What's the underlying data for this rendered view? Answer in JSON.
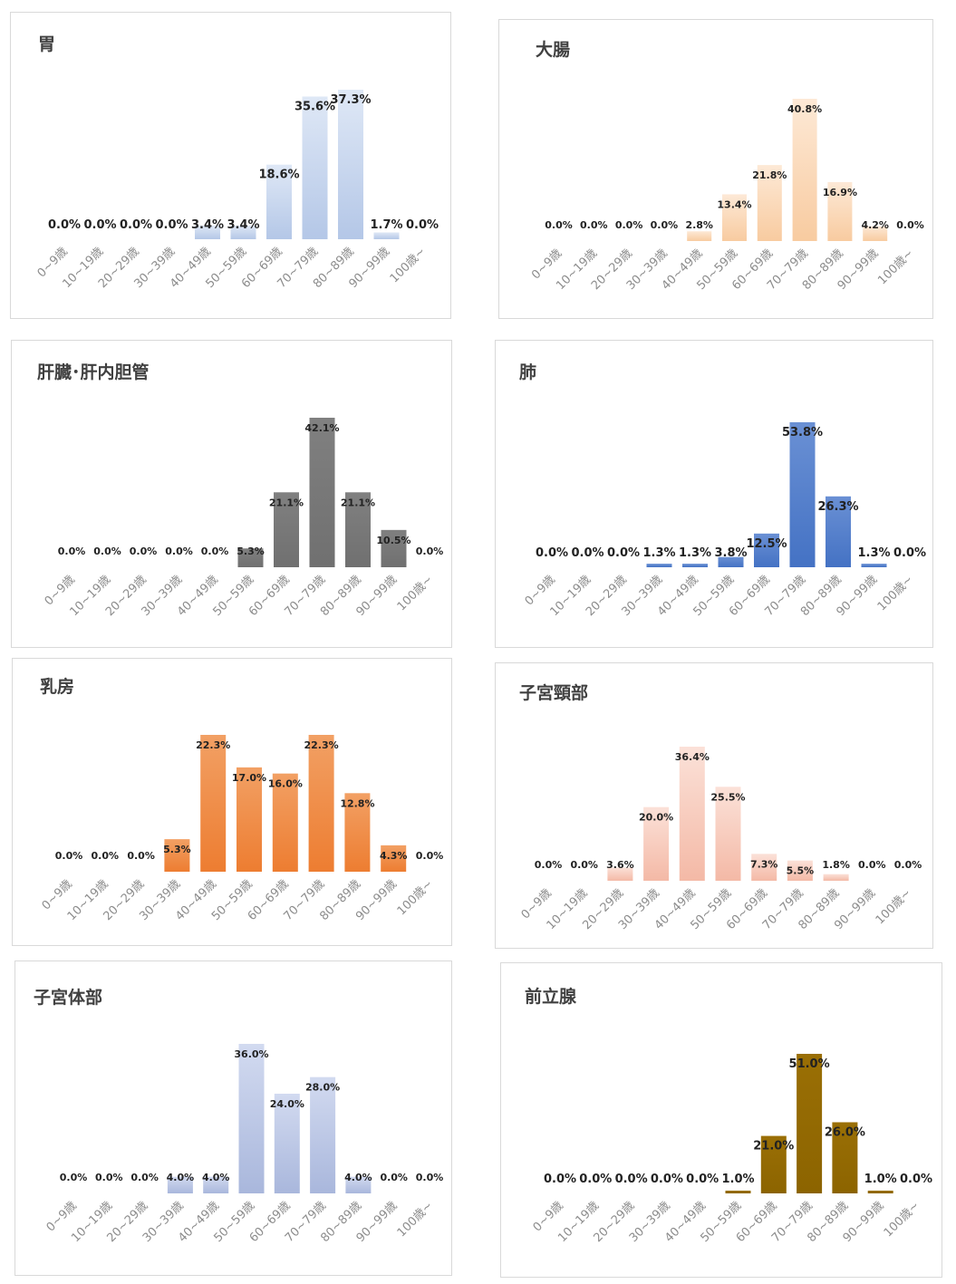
{
  "page": {
    "background": "#ffffff",
    "border_color": "#d9d9d9"
  },
  "categories": [
    "0~9歳",
    "10~19歳",
    "20~29歳",
    "30~39歳",
    "40~49歳",
    "50~59歳",
    "60~69歳",
    "70~79歳",
    "80~89歳",
    "90~99歳",
    "100歳~"
  ],
  "chart_data": [
    {
      "type": "bar",
      "title": "胃",
      "color": "#b4c7e7",
      "gradient_light": "#dfe8f6",
      "categories": [
        "0~9歳",
        "10~19歳",
        "20~29歳",
        "30~39歳",
        "40~49歳",
        "50~59歳",
        "60~69歳",
        "70~79歳",
        "80~89歳",
        "90~99歳",
        "100歳~"
      ],
      "values": [
        0.0,
        0.0,
        0.0,
        0.0,
        3.4,
        3.4,
        18.6,
        35.6,
        37.3,
        1.7,
        0.0
      ],
      "labels": [
        "0.0%",
        "0.0%",
        "0.0%",
        "0.0%",
        "3.4%",
        "3.4%",
        "18.6%",
        "35.6%",
        "37.3%",
        "1.7%",
        "0.0%"
      ],
      "ylim": [
        0,
        37.3
      ]
    },
    {
      "type": "bar",
      "title": "大腸",
      "color": "#f8cba0",
      "gradient_light": "#fde9d6",
      "categories": [
        "0~9歳",
        "10~19歳",
        "20~29歳",
        "30~39歳",
        "40~49歳",
        "50~59歳",
        "60~69歳",
        "70~79歳",
        "80~89歳",
        "90~99歳",
        "100歳~"
      ],
      "values": [
        0.0,
        0.0,
        0.0,
        0.0,
        2.8,
        13.4,
        21.8,
        40.8,
        16.9,
        4.2,
        0.0
      ],
      "labels": [
        "0.0%",
        "0.0%",
        "0.0%",
        "0.0%",
        "2.8%",
        "13.4%",
        "21.8%",
        "40.8%",
        "16.9%",
        "4.2%",
        "0.0%"
      ],
      "ylim": [
        0,
        40.8
      ]
    },
    {
      "type": "bar",
      "title": "肝臓･肝内胆管",
      "color": "#707070",
      "gradient_light": "#808080",
      "categories": [
        "0~9歳",
        "10~19歳",
        "20~29歳",
        "30~39歳",
        "40~49歳",
        "50~59歳",
        "60~69歳",
        "70~79歳",
        "80~89歳",
        "90~99歳",
        "100歳~"
      ],
      "values": [
        0.0,
        0.0,
        0.0,
        0.0,
        0.0,
        5.3,
        21.1,
        42.1,
        21.1,
        10.5,
        0.0
      ],
      "labels": [
        "0.0%",
        "0.0%",
        "0.0%",
        "0.0%",
        "0.0%",
        "5.3%",
        "21.1%",
        "42.1%",
        "21.1%",
        "10.5%",
        "0.0%"
      ],
      "ylim": [
        0,
        42.1
      ]
    },
    {
      "type": "bar",
      "title": "肺",
      "color": "#4472c4",
      "gradient_light": "#6a90d4",
      "categories": [
        "0~9歳",
        "10~19歳",
        "20~29歳",
        "30~39歳",
        "40~49歳",
        "50~59歳",
        "60~69歳",
        "70~79歳",
        "80~89歳",
        "90~99歳",
        "100歳~"
      ],
      "values": [
        0.0,
        0.0,
        0.0,
        1.3,
        1.3,
        3.8,
        12.5,
        53.8,
        26.3,
        1.3,
        0.0
      ],
      "labels": [
        "0.0%",
        "0.0%",
        "0.0%",
        "1.3%",
        "1.3%",
        "3.8%",
        "12.5%",
        "53.8%",
        "26.3%",
        "1.3%",
        "0.0%"
      ],
      "ylim": [
        0,
        53.8
      ]
    },
    {
      "type": "bar",
      "title": "乳房",
      "color": "#ed7d31",
      "gradient_light": "#f2a064",
      "categories": [
        "0~9歳",
        "10~19歳",
        "20~29歳",
        "30~39歳",
        "40~49歳",
        "50~59歳",
        "60~69歳",
        "70~79歳",
        "80~89歳",
        "90~99歳",
        "100歳~"
      ],
      "values": [
        0.0,
        0.0,
        0.0,
        5.3,
        22.3,
        17.0,
        16.0,
        22.3,
        12.8,
        4.3,
        0.0
      ],
      "labels": [
        "0.0%",
        "0.0%",
        "0.0%",
        "5.3%",
        "22.3%",
        "17.0%",
        "16.0%",
        "22.3%",
        "12.8%",
        "4.3%",
        "0.0%"
      ],
      "ylim": [
        0,
        22.3
      ]
    },
    {
      "type": "bar",
      "title": "子宮頸部",
      "color": "#f4b9a6",
      "gradient_light": "#fbe1d8",
      "categories": [
        "0~9歳",
        "10~19歳",
        "20~29歳",
        "30~39歳",
        "40~49歳",
        "50~59歳",
        "60~69歳",
        "70~79歳",
        "80~89歳",
        "90~99歳",
        "100歳~"
      ],
      "values": [
        0.0,
        0.0,
        3.6,
        20.0,
        36.4,
        25.5,
        7.3,
        5.5,
        1.8,
        0.0,
        0.0
      ],
      "labels": [
        "0.0%",
        "0.0%",
        "3.6%",
        "20.0%",
        "36.4%",
        "25.5%",
        "7.3%",
        "5.5%",
        "1.8%",
        "0.0%",
        "0.0%"
      ],
      "ylim": [
        0,
        36.4
      ]
    },
    {
      "type": "bar",
      "title": "子宮体部",
      "color": "#a9b7dc",
      "gradient_light": "#d2daf0",
      "categories": [
        "0~9歳",
        "10~19歳",
        "20~29歳",
        "30~39歳",
        "40~49歳",
        "50~59歳",
        "60~69歳",
        "70~79歳",
        "80~89歳",
        "90~99歳",
        "100歳~"
      ],
      "values": [
        0.0,
        0.0,
        0.0,
        4.0,
        4.0,
        36.0,
        24.0,
        28.0,
        4.0,
        0.0,
        0.0
      ],
      "labels": [
        "0.0%",
        "0.0%",
        "0.0%",
        "4.0%",
        "4.0%",
        "36.0%",
        "24.0%",
        "28.0%",
        "4.0%",
        "0.0%",
        "0.0%"
      ],
      "ylim": [
        0,
        36.0
      ]
    },
    {
      "type": "bar",
      "title": "前立腺",
      "color": "#8c6400",
      "gradient_light": "#9a6f05",
      "categories": [
        "0~9歳",
        "10~19歳",
        "20~29歳",
        "30~39歳",
        "40~49歳",
        "50~59歳",
        "60~69歳",
        "70~79歳",
        "80~89歳",
        "90~99歳",
        "100歳~"
      ],
      "values": [
        0.0,
        0.0,
        0.0,
        0.0,
        0.0,
        1.0,
        21.0,
        51.0,
        26.0,
        1.0,
        0.0
      ],
      "labels": [
        "0.0%",
        "0.0%",
        "0.0%",
        "0.0%",
        "0.0%",
        "1.0%",
        "21.0%",
        "51.0%",
        "26.0%",
        "1.0%",
        "0.0%"
      ],
      "ylim": [
        0,
        51.0
      ]
    }
  ]
}
